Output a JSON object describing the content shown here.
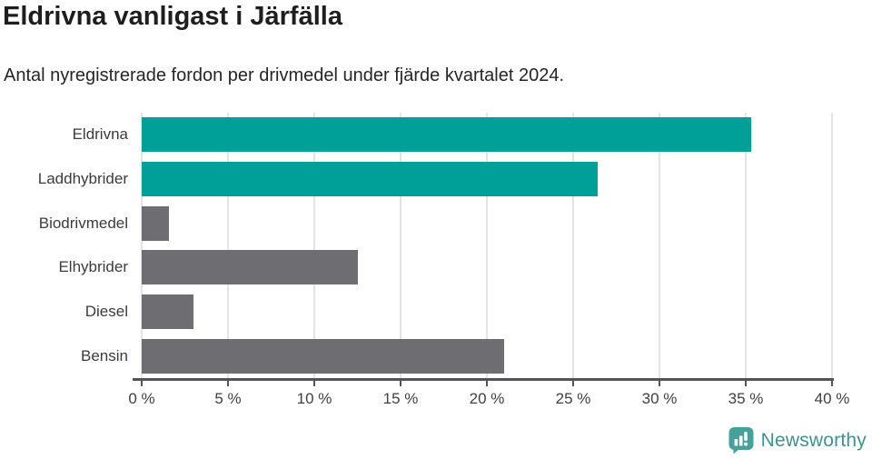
{
  "header": {
    "title": "Eldrivna vanligast i Järfälla",
    "subtitle": "Antal nyregistrerade fordon per drivmedel under fjärde kvartalet 2024."
  },
  "chart_data": {
    "type": "bar",
    "orientation": "horizontal",
    "title": "Eldrivna vanligast i Järfälla",
    "subtitle": "Antal nyregistrerade fordon per drivmedel under fjärde kvartalet 2024.",
    "categories": [
      "Eldrivna",
      "Laddhybrider",
      "Biodrivmedel",
      "Elhybrider",
      "Diesel",
      "Bensin"
    ],
    "values": [
      35.3,
      26.4,
      1.6,
      12.5,
      3.0,
      21.0
    ],
    "unit": "%",
    "xlim": [
      0,
      40
    ],
    "tick_step": 5,
    "tick_labels": [
      "0 %",
      "5 %",
      "10 %",
      "15 %",
      "20 %",
      "25 %",
      "30 %",
      "35 %",
      "40 %"
    ],
    "grid": true,
    "legend": "none",
    "bar_colors": [
      "#00A099",
      "#00A099",
      "#6E6D72",
      "#6E6D72",
      "#6E6D72",
      "#6E6D72"
    ],
    "highlight_color": "#00A099",
    "default_color": "#6E6D72",
    "gridline_color": "#E4E4E4",
    "axis_color": "#54535A"
  },
  "footer": {
    "brand": "Newsworthy",
    "brand_color": "#40918F",
    "icon_color": "#46A09C"
  }
}
